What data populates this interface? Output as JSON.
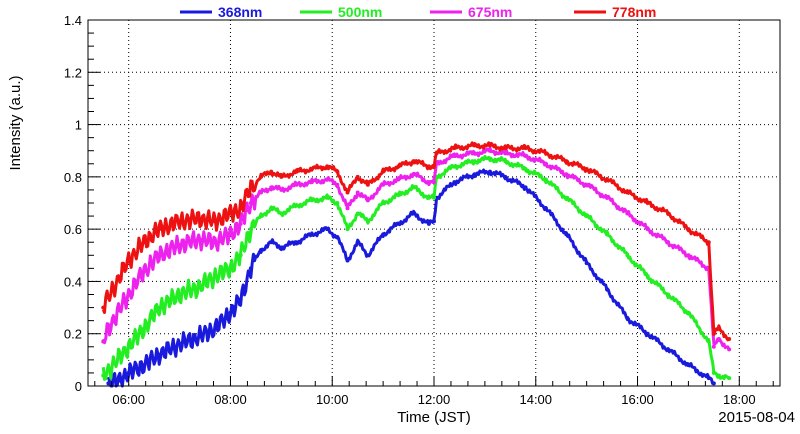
{
  "chart_data": {
    "type": "scatter",
    "title": "",
    "xlabel": "Time (JST)",
    "ylabel": "Intensity (a.u.)",
    "date_label": "2015-08-04",
    "xlim": [
      5.2,
      18.8
    ],
    "ylim": [
      0,
      1.4
    ],
    "x_ticks": [
      6,
      8,
      10,
      12,
      14,
      16,
      18
    ],
    "x_tick_labels": [
      "06:00",
      "08:00",
      "10:00",
      "12:00",
      "14:00",
      "16:00",
      "18:00"
    ],
    "y_ticks": [
      0,
      0.2,
      0.4,
      0.6,
      0.8,
      1,
      1.2,
      1.4
    ],
    "y_tick_labels": [
      "0",
      "0.2",
      "0.4",
      "0.6",
      "0.8",
      "1",
      "1.2",
      "1.4"
    ],
    "grid": true,
    "legend_position": "top",
    "series": [
      {
        "name": "368nm",
        "color": "#1a1adc",
        "x": [
          5.6,
          5.8,
          6.0,
          6.3,
          6.6,
          7.0,
          7.4,
          7.7,
          8.0,
          8.2,
          8.4,
          8.6,
          8.8,
          9.0,
          9.3,
          9.6,
          9.9,
          10.1,
          10.3,
          10.5,
          10.7,
          11.0,
          11.3,
          11.6,
          11.9,
          12.0,
          12.05,
          12.4,
          12.8,
          13.1,
          13.4,
          13.8,
          14.2,
          14.6,
          15.0,
          15.4,
          15.8,
          16.2,
          16.6,
          17.0,
          17.4,
          17.5
        ],
        "y": [
          0.01,
          0.02,
          0.05,
          0.08,
          0.12,
          0.16,
          0.19,
          0.22,
          0.28,
          0.33,
          0.45,
          0.52,
          0.55,
          0.53,
          0.55,
          0.58,
          0.6,
          0.57,
          0.48,
          0.55,
          0.5,
          0.58,
          0.62,
          0.66,
          0.62,
          0.63,
          0.72,
          0.78,
          0.81,
          0.82,
          0.8,
          0.76,
          0.68,
          0.58,
          0.47,
          0.37,
          0.26,
          0.2,
          0.14,
          0.08,
          0.03,
          0.01
        ]
      },
      {
        "name": "500nm",
        "color": "#22ee22",
        "x": [
          5.5,
          5.6,
          6.0,
          6.3,
          6.6,
          7.0,
          7.4,
          7.7,
          8.0,
          8.2,
          8.4,
          8.6,
          8.8,
          9.0,
          9.3,
          9.6,
          9.9,
          10.1,
          10.3,
          10.5,
          10.7,
          11.0,
          11.3,
          11.6,
          11.9,
          12.0,
          12.05,
          12.4,
          12.8,
          13.1,
          13.4,
          13.8,
          14.2,
          14.6,
          15.0,
          15.4,
          15.8,
          16.2,
          16.6,
          17.0,
          17.4,
          17.5,
          17.6,
          17.8
        ],
        "y": [
          0.04,
          0.06,
          0.15,
          0.22,
          0.3,
          0.35,
          0.38,
          0.42,
          0.45,
          0.5,
          0.6,
          0.65,
          0.68,
          0.66,
          0.69,
          0.71,
          0.72,
          0.7,
          0.6,
          0.66,
          0.63,
          0.7,
          0.73,
          0.76,
          0.72,
          0.72,
          0.8,
          0.84,
          0.86,
          0.87,
          0.86,
          0.83,
          0.79,
          0.72,
          0.65,
          0.58,
          0.5,
          0.42,
          0.35,
          0.28,
          0.17,
          0.05,
          0.04,
          0.03
        ]
      },
      {
        "name": "675nm",
        "color": "#ee22ee",
        "x": [
          5.5,
          5.6,
          6.0,
          6.3,
          6.6,
          7.0,
          7.4,
          7.7,
          8.0,
          8.2,
          8.4,
          8.6,
          8.8,
          9.0,
          9.3,
          9.6,
          9.9,
          10.1,
          10.3,
          10.5,
          10.7,
          11.0,
          11.3,
          11.6,
          11.9,
          12.0,
          12.05,
          12.4,
          12.8,
          13.1,
          13.4,
          13.8,
          14.2,
          14.6,
          15.0,
          15.4,
          15.8,
          16.2,
          16.6,
          17.0,
          17.4,
          17.5,
          17.6,
          17.8
        ],
        "y": [
          0.17,
          0.22,
          0.35,
          0.44,
          0.5,
          0.54,
          0.56,
          0.55,
          0.58,
          0.62,
          0.7,
          0.74,
          0.76,
          0.75,
          0.77,
          0.78,
          0.79,
          0.77,
          0.68,
          0.74,
          0.71,
          0.77,
          0.79,
          0.81,
          0.78,
          0.78,
          0.85,
          0.88,
          0.89,
          0.9,
          0.89,
          0.88,
          0.85,
          0.81,
          0.77,
          0.72,
          0.66,
          0.6,
          0.55,
          0.5,
          0.45,
          0.15,
          0.18,
          0.14
        ]
      },
      {
        "name": "778nm",
        "color": "#ee1111",
        "x": [
          5.5,
          5.6,
          6.0,
          6.3,
          6.6,
          7.0,
          7.4,
          7.7,
          8.0,
          8.2,
          8.4,
          8.6,
          8.8,
          9.0,
          9.3,
          9.6,
          9.9,
          10.1,
          10.3,
          10.5,
          10.7,
          11.0,
          11.3,
          11.6,
          11.9,
          12.0,
          12.05,
          12.4,
          12.8,
          13.1,
          13.4,
          13.8,
          14.2,
          14.6,
          15.0,
          15.4,
          15.8,
          16.2,
          16.6,
          17.0,
          17.4,
          17.5,
          17.6,
          17.8
        ],
        "y": [
          0.3,
          0.34,
          0.48,
          0.55,
          0.6,
          0.63,
          0.64,
          0.63,
          0.66,
          0.68,
          0.76,
          0.8,
          0.82,
          0.8,
          0.82,
          0.83,
          0.84,
          0.82,
          0.74,
          0.8,
          0.77,
          0.82,
          0.84,
          0.86,
          0.84,
          0.84,
          0.89,
          0.91,
          0.92,
          0.92,
          0.91,
          0.91,
          0.89,
          0.86,
          0.83,
          0.79,
          0.74,
          0.7,
          0.66,
          0.6,
          0.55,
          0.2,
          0.22,
          0.18
        ]
      }
    ]
  }
}
